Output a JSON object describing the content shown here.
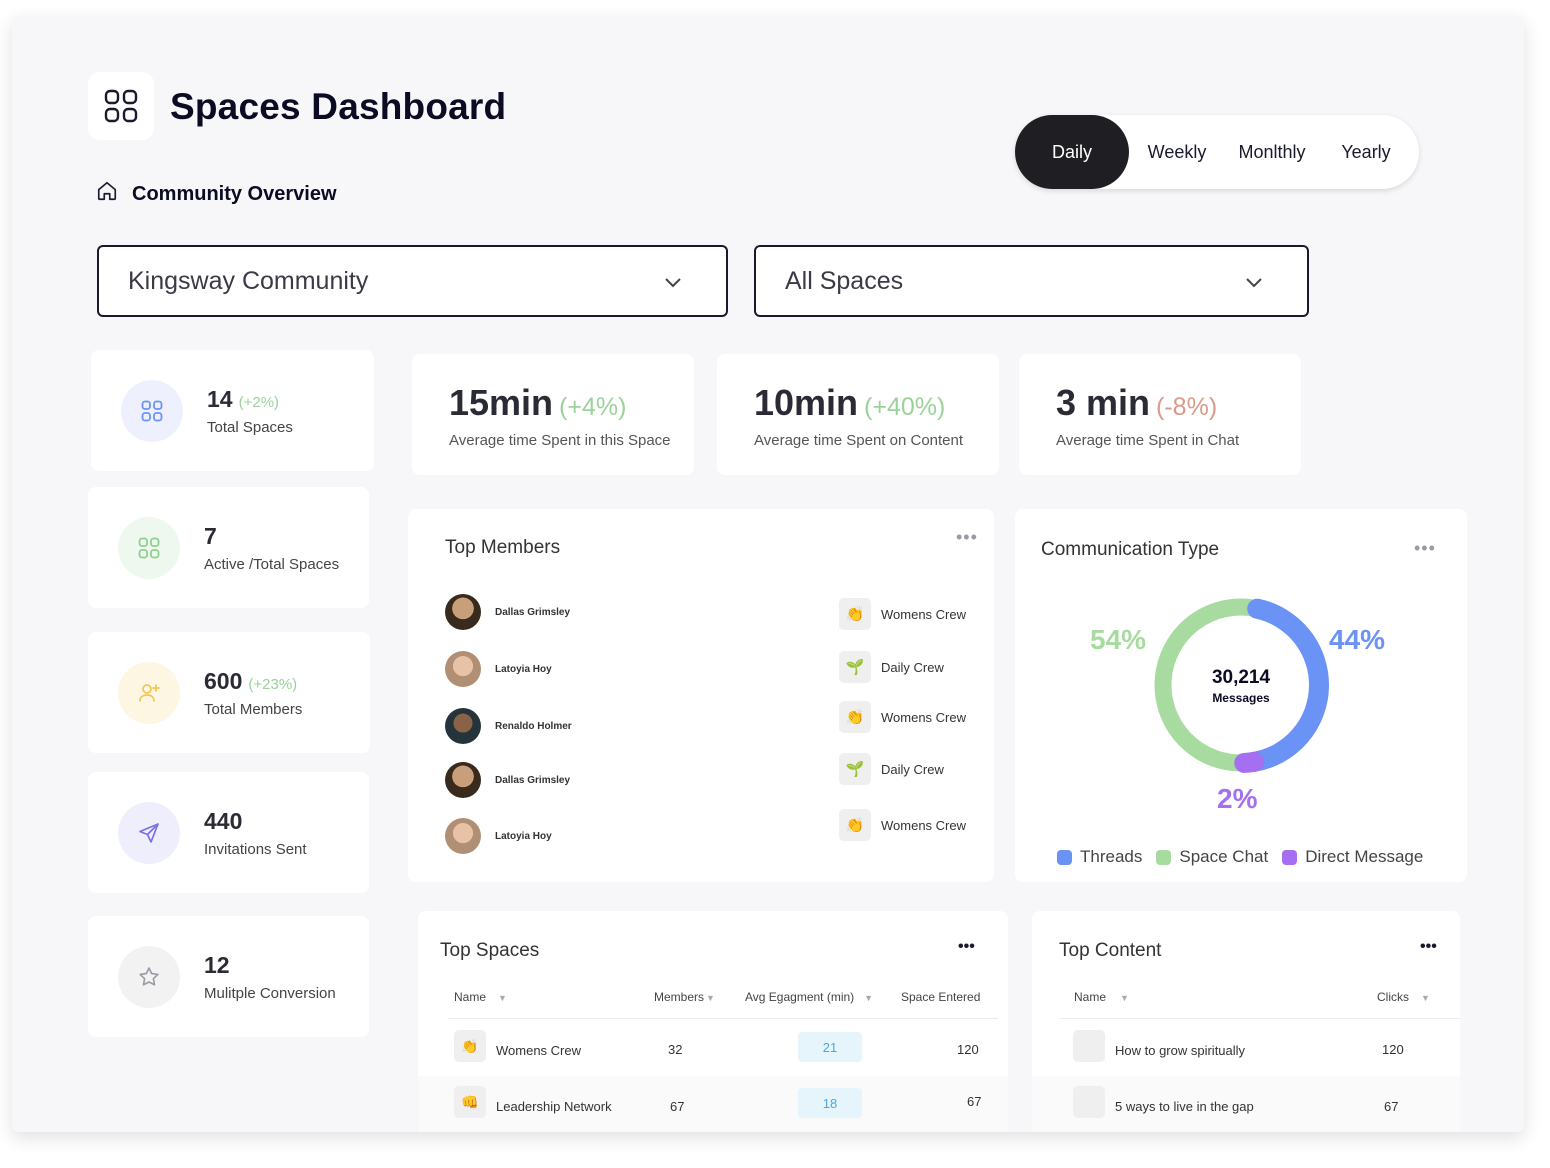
{
  "header": {
    "title": "Spaces Dashboard",
    "subtitle": "Community Overview",
    "period_tabs": [
      "Daily",
      "Weekly",
      "Monlthly",
      "Yearly"
    ],
    "active_period": "Daily"
  },
  "filters": {
    "community": "Kingsway Community",
    "space": "All Spaces"
  },
  "stats": [
    {
      "value": "14",
      "change": "(+2%)",
      "label": "Total Spaces",
      "icon": "grid-icon"
    },
    {
      "value": "7",
      "change": "",
      "label": "Active /Total Spaces",
      "icon": "grid-icon"
    },
    {
      "value": "600",
      "change": "(+23%)",
      "label": "Total Members",
      "icon": "user-add-icon"
    },
    {
      "value": "440",
      "change": "",
      "label": "Invitations Sent",
      "icon": "send-icon"
    },
    {
      "value": "12",
      "change": "",
      "label": "Mulitple Conversion",
      "icon": "star-icon"
    }
  ],
  "kpis": [
    {
      "value": "15min",
      "change": "(+4%)",
      "label": "Average time Spent in this Space",
      "change_color": "#9bd19b"
    },
    {
      "value": "10min",
      "change": "(+40%)",
      "label": "Average time Spent on Content",
      "change_color": "#9bd19b"
    },
    {
      "value": "3 min",
      "change": "(-8%)",
      "label": "Average time Spent in Chat",
      "change_color": "#d99a8a"
    }
  ],
  "top_members": {
    "title": "Top Members",
    "more": "•••",
    "members": [
      "Dallas Grimsley",
      "Latoyia Hoy",
      "Renaldo Holmer",
      "Dallas Grimsley",
      "Latoyia Hoy"
    ],
    "crews": [
      {
        "label": "Womens Crew",
        "icon": "clap-icon"
      },
      {
        "label": "Daily Crew",
        "icon": "sprout-icon"
      },
      {
        "label": "Womens Crew",
        "icon": "clap-icon"
      },
      {
        "label": "Daily Crew",
        "icon": "sprout-icon"
      },
      {
        "label": "Womens Crew",
        "icon": "clap-icon"
      }
    ]
  },
  "communication": {
    "title": "Communication Type",
    "more": "•••",
    "total": "30,214",
    "total_label": "Messages",
    "labels": {
      "threads": "44%",
      "space_chat": "54%",
      "direct": "2%"
    }
  },
  "chart_data": {
    "type": "pie",
    "title": "Communication Type",
    "categories": [
      "Threads",
      "Space Chat",
      "Direct Message"
    ],
    "values": [
      44,
      54,
      2
    ],
    "colors": [
      "#6b92f5",
      "#a8dba0",
      "#a46ff0"
    ],
    "center_value": "30,214",
    "center_label": "Messages",
    "legend": "bottom"
  },
  "top_spaces": {
    "title": "Top Spaces",
    "more": "•••",
    "headers": [
      "Name",
      "Members",
      "Avg Egagment (min)",
      "Space Entered"
    ],
    "rows": [
      {
        "name": "Womens Crew",
        "members": "32",
        "avg": "21",
        "entered": "120",
        "icon": "clap-icon"
      },
      {
        "name": "Leadership Network",
        "members": "67",
        "avg": "18",
        "entered": "67",
        "icon": "fist-bump-icon"
      }
    ]
  },
  "top_content": {
    "title": "Top Content",
    "more": "•••",
    "headers": [
      "Name",
      "Clicks"
    ],
    "rows": [
      {
        "name": "How to grow spiritually",
        "clicks": "120"
      },
      {
        "name": "5 ways to live in the gap",
        "clicks": "67"
      }
    ]
  }
}
